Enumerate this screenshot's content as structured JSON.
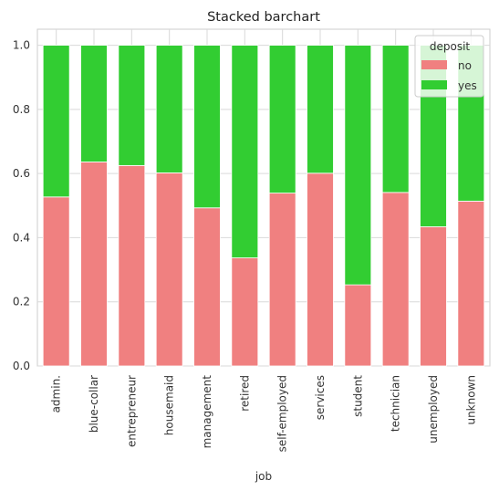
{
  "chart_data": {
    "type": "bar",
    "stacked": true,
    "title": "Stacked barchart",
    "xlabel": "job",
    "ylabel": "",
    "ylim": [
      0,
      1.05
    ],
    "yticks": [
      "0.0",
      "0.2",
      "0.4",
      "0.6",
      "0.8",
      "1.0"
    ],
    "grid": true,
    "legend": {
      "title": "deposit",
      "placement": "top-right"
    },
    "categories": [
      "admin.",
      "blue-collar",
      "entrepreneur",
      "housemaid",
      "management",
      "retired",
      "self-employed",
      "services",
      "student",
      "technician",
      "unemployed",
      "unknown"
    ],
    "series": [
      {
        "name": "no",
        "color": "#f08080",
        "values": [
          0.527,
          0.636,
          0.625,
          0.602,
          0.493,
          0.337,
          0.539,
          0.601,
          0.253,
          0.541,
          0.434,
          0.514
        ]
      },
      {
        "name": "yes",
        "color": "#32cd32",
        "values": [
          0.473,
          0.364,
          0.375,
          0.398,
          0.507,
          0.663,
          0.461,
          0.399,
          0.747,
          0.459,
          0.566,
          0.486
        ]
      }
    ]
  }
}
